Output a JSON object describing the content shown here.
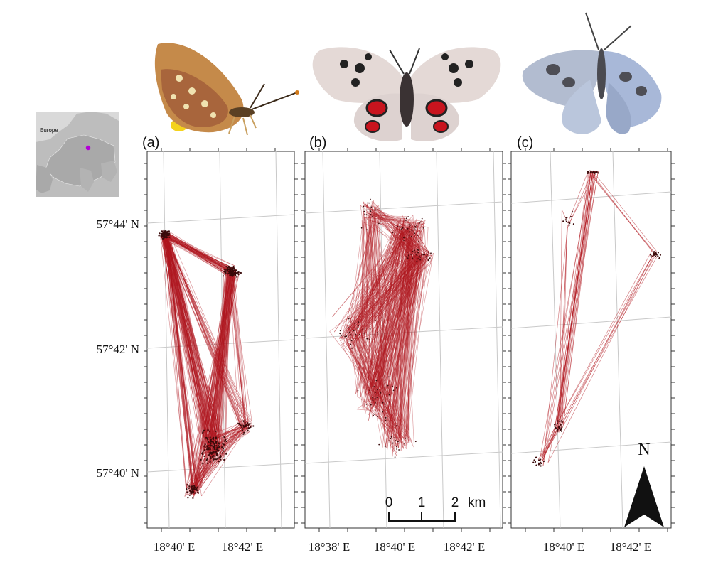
{
  "inset": {
    "label": "Europe",
    "marker_color": "#b400d8"
  },
  "panels": [
    {
      "label": "(a)"
    },
    {
      "label": "(b)"
    },
    {
      "label": "(c)"
    }
  ],
  "latitude_labels": [
    "57°44' N",
    "57°42' N",
    "57°40' N"
  ],
  "longitude_labels": {
    "a": [
      "18°40' E",
      "18°42' E"
    ],
    "b": [
      "18°38' E",
      "18°40' E",
      "18°42' E"
    ],
    "c": [
      "18°40' E",
      "18°42' E"
    ]
  },
  "scale_bar": {
    "ticks": [
      "0",
      "1",
      "2"
    ],
    "unit": "km"
  },
  "north_arrow": {
    "label": "N"
  },
  "track_color": "#b0161e",
  "butterflies": [
    {
      "species_icon": "fritillary-butterfly-icon"
    },
    {
      "species_icon": "apollo-butterfly-icon"
    },
    {
      "species_icon": "blue-butterfly-icon"
    }
  ]
}
